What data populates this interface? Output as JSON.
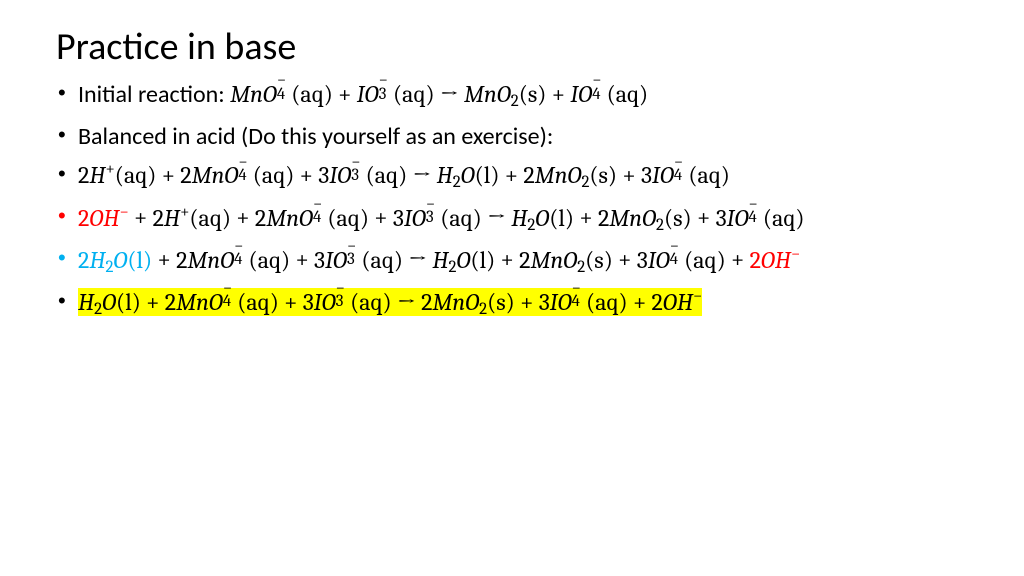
{
  "colors": {
    "text": "#000000",
    "red": "#ff0000",
    "blue": "#00b0f0",
    "highlight": "#ffff00",
    "background": "#ffffff"
  },
  "typography": {
    "title_family": "Calibri",
    "title_size_pt": 28,
    "body_family": "Cambria Math",
    "body_size_pt": 18,
    "line_height": 1.35
  },
  "title": "Practice in base",
  "bullets": [
    {
      "bullet_color": "text",
      "runs": [
        {
          "kind": "label",
          "text": "Initial reaction:  "
        },
        {
          "kind": "chem",
          "text": "MnO4^-(aq)"
        },
        {
          "kind": "op",
          "text": " + "
        },
        {
          "kind": "chem",
          "text": "IO3^-(aq)"
        },
        {
          "kind": "op",
          "text": " → "
        },
        {
          "kind": "chem",
          "text": "MnO2(s)"
        },
        {
          "kind": "op",
          "text": " + "
        },
        {
          "kind": "chem",
          "text": "IO4^-(aq)"
        }
      ]
    },
    {
      "bullet_color": "text",
      "runs": [
        {
          "kind": "label",
          "text": "Balanced in acid (Do this yourself as an exercise):"
        }
      ]
    },
    {
      "bullet_color": "text",
      "runs": [
        {
          "kind": "chem",
          "text": "2H^+(aq)"
        },
        {
          "kind": "op",
          "text": " + "
        },
        {
          "kind": "chem",
          "text": "2MnO4^-(aq)"
        },
        {
          "kind": "op",
          "text": " + "
        },
        {
          "kind": "chem",
          "text": "3IO3^-(aq)"
        },
        {
          "kind": "op",
          "text": " → "
        },
        {
          "kind": "chem",
          "text": "H2O(l)"
        },
        {
          "kind": "op",
          "text": " + "
        },
        {
          "kind": "chem",
          "text": "2MnO2(s)"
        },
        {
          "kind": "op",
          "text": " + "
        },
        {
          "kind": "chem",
          "text": "3IO4^-(aq)"
        }
      ]
    },
    {
      "bullet_color": "red",
      "runs": [
        {
          "kind": "chem",
          "color": "red",
          "text": "2OH^-"
        },
        {
          "kind": "op",
          "text": " + "
        },
        {
          "kind": "chem",
          "text": "2H^+(aq)"
        },
        {
          "kind": "op",
          "text": " + "
        },
        {
          "kind": "chem",
          "text": "2MnO4^-(aq)"
        },
        {
          "kind": "op",
          "text": " + "
        },
        {
          "kind": "chem",
          "text": "3IO3^-(aq)"
        },
        {
          "kind": "op",
          "text": " → "
        },
        {
          "kind": "chem",
          "text": "H2O(l)"
        },
        {
          "kind": "op",
          "text": " + "
        },
        {
          "kind": "chem",
          "text": "2MnO2(s)"
        },
        {
          "kind": "op",
          "text": " + "
        },
        {
          "kind": "chem",
          "text": "3IO4^-(aq)"
        }
      ]
    },
    {
      "bullet_color": "blue",
      "runs": [
        {
          "kind": "chem",
          "color": "blue",
          "text": "2H2O(l)"
        },
        {
          "kind": "op",
          "text": " + "
        },
        {
          "kind": "chem",
          "text": "2MnO4^-(aq)"
        },
        {
          "kind": "op",
          "text": " + "
        },
        {
          "kind": "chem",
          "text": "3IO3^-(aq)"
        },
        {
          "kind": "op",
          "text": " → "
        },
        {
          "kind": "chem",
          "text": "H2O(l)"
        },
        {
          "kind": "op",
          "text": " + "
        },
        {
          "kind": "chem",
          "text": "2MnO2(s)"
        },
        {
          "kind": "op",
          "text": " + "
        },
        {
          "kind": "chem",
          "text": "3IO4^-(aq)"
        },
        {
          "kind": "op",
          "text": " + "
        },
        {
          "kind": "chem",
          "color": "red",
          "text": "2OH^-"
        }
      ]
    },
    {
      "bullet_color": "text",
      "runs": [
        {
          "kind": "chem",
          "highlight": true,
          "text": "H2O(l)"
        },
        {
          "kind": "op",
          "highlight": true,
          "text": " + "
        },
        {
          "kind": "chem",
          "highlight": true,
          "text": "2MnO4^-(aq)"
        },
        {
          "kind": "op",
          "highlight": true,
          "text": " + "
        },
        {
          "kind": "chem",
          "highlight": true,
          "text": "3IO3^-(aq)"
        },
        {
          "kind": "op",
          "highlight": true,
          "text": " → "
        },
        {
          "kind": "chem",
          "highlight": true,
          "text": "2MnO2(s)"
        },
        {
          "kind": "op",
          "highlight": true,
          "text": " + "
        },
        {
          "kind": "chem",
          "highlight": true,
          "text": "3IO4^-(aq)"
        },
        {
          "kind": "op",
          "highlight": true,
          "text": " + "
        },
        {
          "kind": "chem",
          "highlight": true,
          "text": "2OH^-"
        }
      ]
    }
  ]
}
